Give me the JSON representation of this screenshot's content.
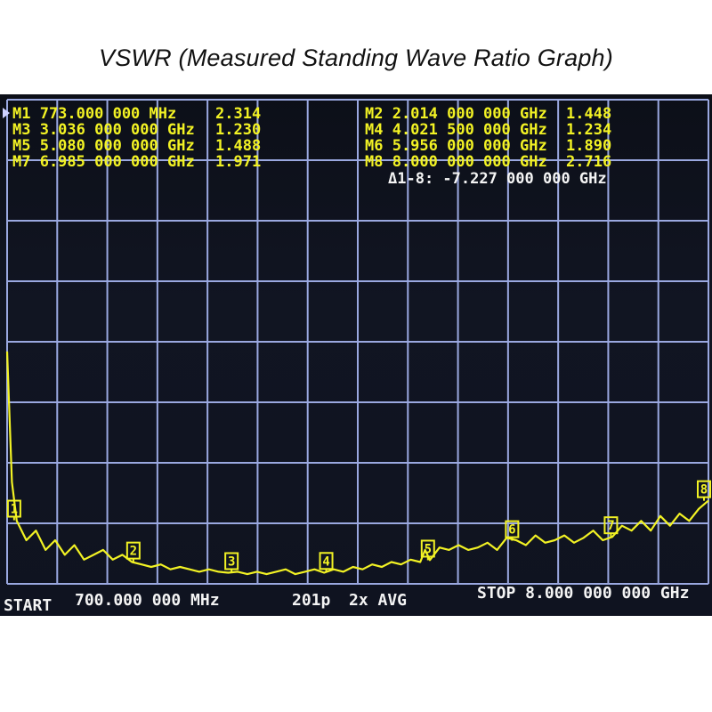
{
  "title": "VSWR (Measured Standing Wave Ratio Graph)",
  "colors": {
    "trace": "#f2f224",
    "grid": "#9aa8e0",
    "text_yellow": "#f2f224",
    "text_white": "#f4f4f4",
    "screen": "#10131e",
    "marker_indicator": "#cfd2ff"
  },
  "markers": [
    {
      "id": "M1",
      "text": "M1 773.000 000 MHz",
      "value": "2.314",
      "active": true
    },
    {
      "id": "M2",
      "text": "M2 2.014 000 000 GHz",
      "value": "1.448"
    },
    {
      "id": "M3",
      "text": "M3 3.036 000 000 GHz",
      "value": "1.230"
    },
    {
      "id": "M4",
      "text": "M4 4.021 500 000 GHz",
      "value": "1.234"
    },
    {
      "id": "M5",
      "text": "M5 5.080 000 000 GHz",
      "value": "1.488"
    },
    {
      "id": "M6",
      "text": "M6 5.956 000 000 GHz",
      "value": "1.890"
    },
    {
      "id": "M7",
      "text": "M7 6.985 000 000 GHz",
      "value": "1.971"
    },
    {
      "id": "M8",
      "text": "M8 8.000 000 000 GHz",
      "value": "2.716"
    }
  ],
  "delta": "Δ1-8: -7.227 000 000 GHz",
  "footer": {
    "start": "START",
    "start_freq": "700.000 000 MHz",
    "points": "201p",
    "avg": "2x AVG",
    "stop": "STOP 8.000 000 000 GHz"
  },
  "chart_data": {
    "type": "line",
    "title": "VSWR (Measured Standing Wave Ratio Graph)",
    "x_unit": "GHz",
    "xlim": [
      0.7,
      8.0
    ],
    "ylim": [
      1.0,
      11.0
    ],
    "x_divisions": 14,
    "y_divisions": 8,
    "grid": true,
    "markers": [
      {
        "label": "1",
        "x": 0.773,
        "y": 2.314
      },
      {
        "label": "2",
        "x": 2.014,
        "y": 1.448
      },
      {
        "label": "3",
        "x": 3.036,
        "y": 1.23
      },
      {
        "label": "4",
        "x": 4.0215,
        "y": 1.234
      },
      {
        "label": "5",
        "x": 5.08,
        "y": 1.488
      },
      {
        "label": "6",
        "x": 5.956,
        "y": 1.89
      },
      {
        "label": "7",
        "x": 6.985,
        "y": 1.971
      },
      {
        "label": "8",
        "x": 8.0,
        "y": 2.716
      }
    ],
    "series": [
      {
        "x": [
          0.7,
          0.75,
          0.8,
          0.9,
          1.0,
          1.1,
          1.2,
          1.3,
          1.4,
          1.5,
          1.6,
          1.7,
          1.8,
          1.9,
          2.0,
          2.1,
          2.2,
          2.3,
          2.4,
          2.5,
          2.6,
          2.7,
          2.8,
          2.9,
          3.0,
          3.1,
          3.2,
          3.3,
          3.4,
          3.5,
          3.6,
          3.7,
          3.8,
          3.9,
          4.0,
          4.1,
          4.2,
          4.3,
          4.4,
          4.5,
          4.6,
          4.7,
          4.8,
          4.9,
          5.0,
          5.05,
          5.1,
          5.2,
          5.3,
          5.4,
          5.5,
          5.6,
          5.7,
          5.8,
          5.9,
          6.0,
          6.1,
          6.2,
          6.3,
          6.4,
          6.5,
          6.6,
          6.7,
          6.8,
          6.9,
          7.0,
          7.1,
          7.2,
          7.3,
          7.4,
          7.5,
          7.6,
          7.7,
          7.8,
          7.9,
          8.0
        ],
        "values": [
          5.8,
          3.1,
          2.3,
          1.9,
          2.1,
          1.7,
          1.9,
          1.6,
          1.8,
          1.5,
          1.6,
          1.7,
          1.5,
          1.6,
          1.45,
          1.4,
          1.35,
          1.4,
          1.3,
          1.35,
          1.3,
          1.25,
          1.3,
          1.25,
          1.23,
          1.25,
          1.2,
          1.25,
          1.2,
          1.25,
          1.3,
          1.2,
          1.25,
          1.3,
          1.23,
          1.3,
          1.25,
          1.35,
          1.3,
          1.4,
          1.35,
          1.45,
          1.4,
          1.5,
          1.45,
          1.7,
          1.49,
          1.75,
          1.7,
          1.8,
          1.7,
          1.75,
          1.85,
          1.7,
          1.95,
          1.9,
          1.8,
          2.0,
          1.85,
          1.9,
          2.0,
          1.85,
          1.95,
          2.1,
          1.9,
          1.97,
          2.2,
          2.1,
          2.3,
          2.1,
          2.4,
          2.2,
          2.45,
          2.3,
          2.55,
          2.72
        ]
      }
    ]
  }
}
